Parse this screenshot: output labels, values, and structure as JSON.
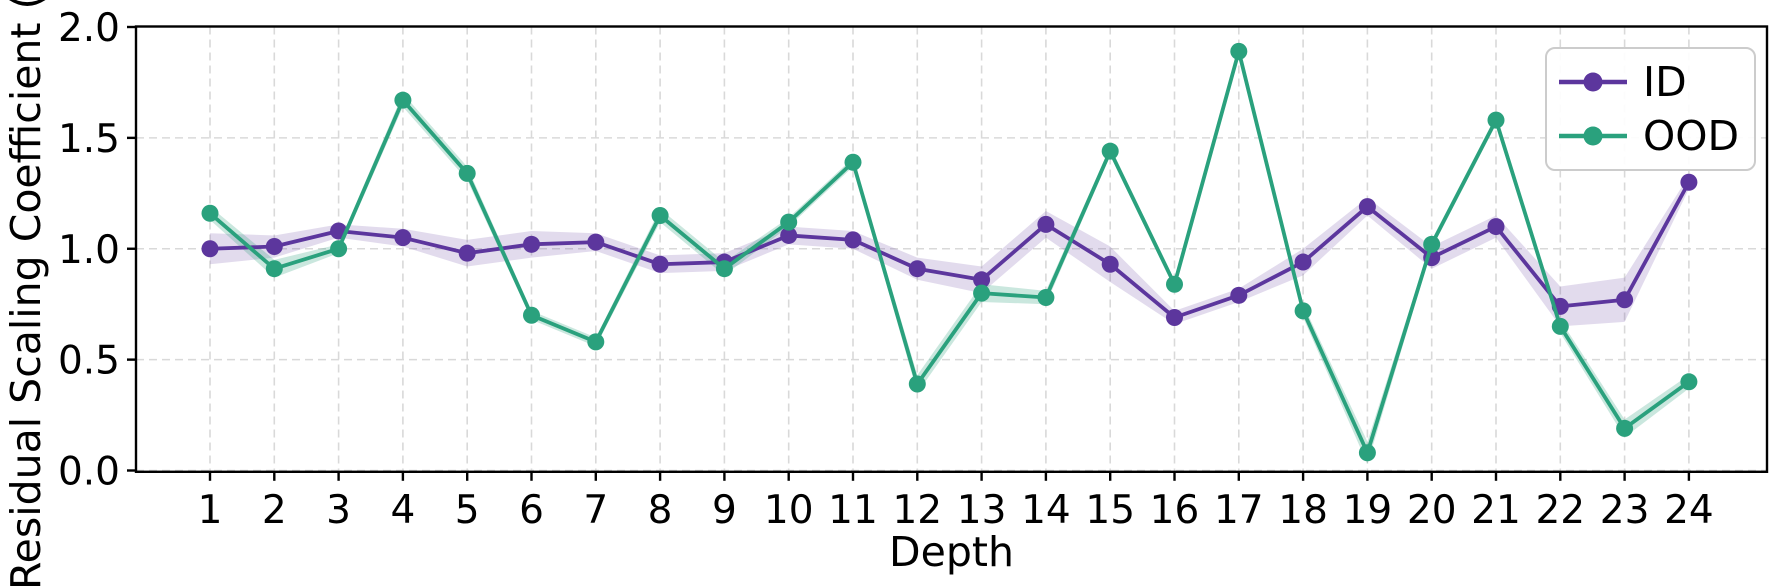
{
  "figure": {
    "title": "",
    "xlabel": "Depth",
    "ylabel": "Residual Scaling Coefficient ("
  },
  "chart_data": {
    "type": "line",
    "title": "",
    "xlabel": "Depth",
    "ylabel": "Residual Scaling Coefficient (",
    "x": [
      1,
      2,
      3,
      4,
      5,
      6,
      7,
      8,
      9,
      10,
      11,
      12,
      13,
      14,
      15,
      16,
      17,
      18,
      19,
      20,
      21,
      22,
      23,
      24
    ],
    "series": [
      {
        "name": "ID",
        "color": "#5c369d",
        "values": [
          1.0,
          1.01,
          1.08,
          1.05,
          0.98,
          1.02,
          1.03,
          0.93,
          0.94,
          1.06,
          1.04,
          0.91,
          0.86,
          1.11,
          0.93,
          0.69,
          0.79,
          0.94,
          1.19,
          0.96,
          1.1,
          0.74,
          0.77,
          1.3
        ],
        "band_halfwidth": [
          0.07,
          0.05,
          0.03,
          0.04,
          0.06,
          0.06,
          0.04,
          0.04,
          0.04,
          0.04,
          0.04,
          0.05,
          0.06,
          0.06,
          0.08,
          0.03,
          0.03,
          0.06,
          0.04,
          0.05,
          0.05,
          0.09,
          0.1,
          0.03
        ],
        "band_opacity": 0.18
      },
      {
        "name": "OOD",
        "color": "#2aa17d",
        "values": [
          1.16,
          0.91,
          1.0,
          1.67,
          1.34,
          0.7,
          0.58,
          1.15,
          0.91,
          1.12,
          1.39,
          0.39,
          0.8,
          0.78,
          1.44,
          0.84,
          1.89,
          0.72,
          0.08,
          1.02,
          1.58,
          0.65,
          0.19,
          0.4
        ],
        "band_halfwidth": [
          0.03,
          0.04,
          0.02,
          0.03,
          0.03,
          0.02,
          0.02,
          0.03,
          0.03,
          0.02,
          0.02,
          0.04,
          0.04,
          0.03,
          0.02,
          0.02,
          0.02,
          0.03,
          0.05,
          0.02,
          0.02,
          0.03,
          0.04,
          0.03
        ],
        "band_opacity": 0.25
      }
    ],
    "ylim": [
      0.0,
      2.0
    ],
    "yticks": [
      "0.0",
      "0.5",
      "1.0",
      "1.5",
      "2.0"
    ],
    "grid": true,
    "grid_style": "dashed",
    "legend_position": "upper right"
  },
  "style": {
    "id_color": "#5c369d",
    "ood_color": "#2aa17d",
    "grid_color": "#d9d9d9",
    "spine_color": "#000000",
    "text_color": "#000000",
    "legend_border_color": "#cccccc",
    "background_color": "#ffffff"
  }
}
